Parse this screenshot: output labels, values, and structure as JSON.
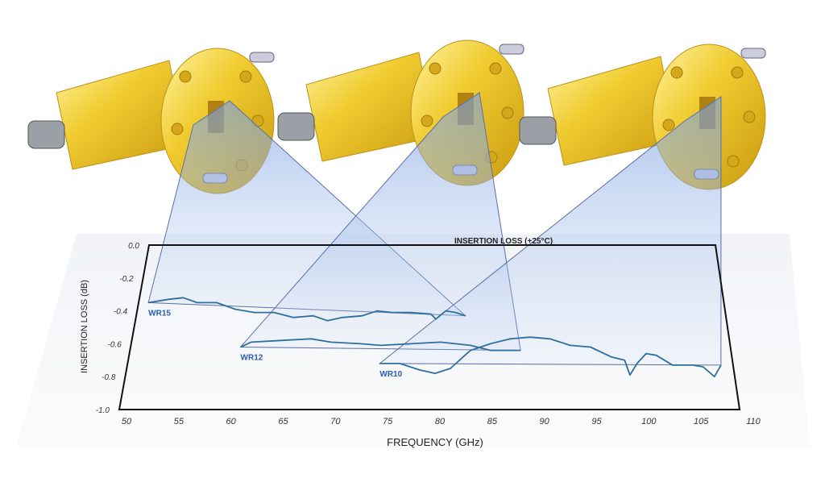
{
  "chart_data": {
    "type": "line",
    "title": "INSERTION LOSS (+25°C)",
    "xlabel": "FREQUENCY  (GHz)",
    "ylabel": "INSERTION LOSS (dB)",
    "xlim": [
      50,
      110
    ],
    "ylim": [
      -1.0,
      0.0
    ],
    "xticks": [
      "50",
      "55",
      "60",
      "65",
      "70",
      "75",
      "80",
      "85",
      "90",
      "95",
      "100",
      "105",
      "110"
    ],
    "yticks": [
      "0.0",
      "-0.2",
      "-0.4",
      "-0.6",
      "-0.8",
      "-1.0"
    ],
    "grid": false,
    "series": [
      {
        "name": "WR15",
        "color": "#2e6f9e",
        "x": [
          51,
          53,
          54.5,
          56,
          58,
          60,
          62,
          64,
          66,
          68,
          69.5,
          71,
          73,
          74.5,
          76,
          78,
          80,
          80.5,
          81.5,
          82.5,
          83.5
        ],
        "y": [
          -0.35,
          -0.33,
          -0.32,
          -0.35,
          -0.35,
          -0.39,
          -0.41,
          -0.41,
          -0.44,
          -0.43,
          -0.46,
          -0.44,
          -0.43,
          -0.4,
          -0.41,
          -0.41,
          -0.42,
          -0.45,
          -0.4,
          -0.41,
          -0.43
        ]
      },
      {
        "name": "WR12",
        "color": "#2e6f9e",
        "x": [
          61,
          62,
          65,
          68,
          70,
          73,
          75,
          78,
          81,
          84,
          86,
          89
        ],
        "y": [
          -0.62,
          -0.59,
          -0.58,
          -0.57,
          -0.59,
          -0.6,
          -0.61,
          -0.6,
          -0.59,
          -0.61,
          -0.64,
          -0.64
        ]
      },
      {
        "name": "WR10",
        "color": "#2e6f9e",
        "x": [
          75,
          77,
          79,
          80.5,
          82,
          84,
          86,
          88,
          90,
          92,
          94,
          96,
          98,
          99.3,
          99.7,
          100.5,
          101.5,
          102.5,
          104,
          106,
          107,
          108,
          108.8
        ],
        "y": [
          -0.72,
          -0.72,
          -0.76,
          -0.78,
          -0.75,
          -0.64,
          -0.6,
          -0.57,
          -0.56,
          -0.57,
          -0.61,
          -0.62,
          -0.68,
          -0.7,
          -0.79,
          -0.72,
          -0.66,
          -0.67,
          -0.73,
          -0.73,
          -0.74,
          -0.8,
          -0.73
        ]
      }
    ]
  },
  "colors": {
    "gold": "#e8c020",
    "label_blue": "#2a5db0",
    "callout": "#5a6fa8"
  }
}
